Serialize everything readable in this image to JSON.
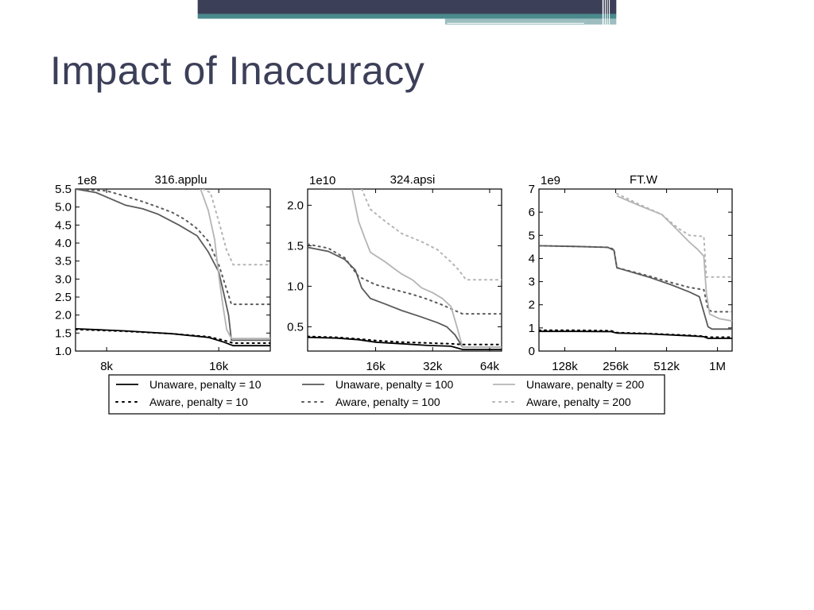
{
  "slide": {
    "title": "Impact of Inaccuracy"
  },
  "theme": {
    "title_color": "#3c3f58",
    "banner_dark": "#3c3f58",
    "banner_teal": "#4a8a8c"
  },
  "chart_data": [
    {
      "type": "line",
      "title": "316.applu",
      "y_scale_label": "1e8",
      "ylim": [
        1.0,
        5.5
      ],
      "y_ticks": [
        1.0,
        1.5,
        2.0,
        2.5,
        3.0,
        3.5,
        4.0,
        4.5,
        5.0,
        5.5
      ],
      "y_tick_labels": [
        "1.0",
        "1.5",
        "2.0",
        "2.5",
        "3.0",
        "3.5",
        "4.0",
        "4.5",
        "5.0",
        "5.5"
      ],
      "x_scale": "log2",
      "xlim": [
        6.6,
        22
      ],
      "x_ticks": [
        8,
        16
      ],
      "x_tick_labels": [
        "8k",
        "16k"
      ],
      "series": [
        {
          "name": "Unaware, penalty = 10",
          "x": [
            6.6,
            9,
            12,
            15,
            16.5,
            17.5,
            22
          ],
          "y": [
            1.62,
            1.56,
            1.48,
            1.38,
            1.25,
            1.15,
            1.15
          ]
        },
        {
          "name": "Aware, penalty = 10",
          "x": [
            6.6,
            9,
            12,
            15,
            16.5,
            17.5,
            22
          ],
          "y": [
            1.6,
            1.55,
            1.48,
            1.4,
            1.3,
            1.22,
            1.22
          ]
        },
        {
          "name": "Unaware, penalty = 100",
          "x": [
            6.6,
            7.5,
            9,
            10,
            11,
            12.5,
            14,
            15,
            16,
            16.5,
            17,
            17.3,
            22
          ],
          "y": [
            5.5,
            5.4,
            5.05,
            4.95,
            4.8,
            4.5,
            4.2,
            3.75,
            3.2,
            2.6,
            2.0,
            1.3,
            1.3
          ]
        },
        {
          "name": "Aware, penalty = 100",
          "x": [
            6.6,
            8,
            9,
            10,
            11,
            12,
            13,
            14,
            15,
            16,
            17.3,
            22
          ],
          "y": [
            5.5,
            5.45,
            5.3,
            5.15,
            5.0,
            4.85,
            4.65,
            4.4,
            4.05,
            3.4,
            2.3,
            2.3
          ]
        },
        {
          "name": "Unaware, penalty = 200",
          "x": [
            14.3,
            15,
            15.6,
            16,
            16.4,
            16.8,
            17.3,
            22
          ],
          "y": [
            5.5,
            4.9,
            4.1,
            3.1,
            2.3,
            1.6,
            1.35,
            1.35
          ]
        },
        {
          "name": "Aware, penalty = 200",
          "x": [
            14.5,
            15.2,
            16,
            16.8,
            17.5,
            22
          ],
          "y": [
            5.5,
            5.4,
            4.6,
            3.8,
            3.4,
            3.4
          ]
        }
      ]
    },
    {
      "type": "line",
      "title": "324.apsi",
      "y_scale_label": "1e10",
      "ylim": [
        0.2,
        2.2
      ],
      "y_ticks": [
        0.5,
        1.0,
        1.5,
        2.0
      ],
      "y_tick_labels": [
        "0.5",
        "1.0",
        "1.5",
        "2.0"
      ],
      "x_scale": "log2",
      "xlim": [
        7,
        74
      ],
      "x_ticks": [
        16,
        32,
        64
      ],
      "x_tick_labels": [
        "16k",
        "32k",
        "64k"
      ],
      "series": [
        {
          "name": "Unaware, penalty = 10",
          "x": [
            7,
            10,
            13,
            16,
            22,
            30,
            40,
            46,
            74
          ],
          "y": [
            0.37,
            0.36,
            0.34,
            0.31,
            0.29,
            0.27,
            0.26,
            0.22,
            0.22
          ]
        },
        {
          "name": "Aware, penalty = 10",
          "x": [
            7,
            10,
            13,
            16,
            22,
            30,
            40,
            46,
            74
          ],
          "y": [
            0.38,
            0.37,
            0.35,
            0.33,
            0.31,
            0.3,
            0.29,
            0.28,
            0.28
          ]
        },
        {
          "name": "Unaware, penalty = 100",
          "x": [
            7,
            9,
            11,
            12.5,
            13.5,
            15,
            18,
            22,
            28,
            34,
            38,
            42,
            46,
            74
          ],
          "y": [
            1.48,
            1.43,
            1.33,
            1.2,
            0.98,
            0.85,
            0.78,
            0.7,
            0.62,
            0.55,
            0.5,
            0.4,
            0.25,
            0.25
          ]
        },
        {
          "name": "Aware, penalty = 100",
          "x": [
            7,
            9,
            11,
            13,
            16,
            20,
            25,
            30,
            36,
            42,
            46,
            74
          ],
          "y": [
            1.52,
            1.47,
            1.35,
            1.12,
            1.02,
            0.96,
            0.9,
            0.84,
            0.77,
            0.7,
            0.66,
            0.66
          ]
        },
        {
          "name": "Unaware, penalty = 200",
          "x": [
            12,
            13,
            14,
            15,
            18,
            20,
            22,
            25,
            28,
            32,
            36,
            40,
            43,
            46,
            74
          ],
          "y": [
            2.2,
            1.8,
            1.6,
            1.42,
            1.3,
            1.22,
            1.15,
            1.08,
            0.98,
            0.92,
            0.85,
            0.75,
            0.5,
            0.25,
            0.25
          ]
        },
        {
          "name": "Aware, penalty = 200",
          "x": [
            13.5,
            15,
            18,
            22,
            28,
            34,
            40,
            44,
            48,
            74
          ],
          "y": [
            2.2,
            1.95,
            1.8,
            1.65,
            1.55,
            1.45,
            1.3,
            1.2,
            1.08,
            1.08
          ]
        }
      ]
    },
    {
      "type": "line",
      "title": "FT.W",
      "y_scale_label": "1e9",
      "ylim": [
        0,
        7
      ],
      "y_ticks": [
        0,
        1,
        2,
        3,
        4,
        5,
        6,
        7
      ],
      "y_tick_labels": [
        "0",
        "1",
        "2",
        "3",
        "4",
        "5",
        "6",
        "7"
      ],
      "x_scale": "log2",
      "xlim": [
        90,
        1250
      ],
      "x_ticks": [
        128,
        256,
        512,
        1024
      ],
      "x_tick_labels": [
        "128k",
        "256k",
        "512k",
        "1M"
      ],
      "series": [
        {
          "name": "Unaware, penalty = 10",
          "x": [
            90,
            150,
            240,
            260,
            400,
            700,
            850,
            900,
            1250
          ],
          "y": [
            0.85,
            0.85,
            0.84,
            0.78,
            0.74,
            0.66,
            0.62,
            0.55,
            0.55
          ]
        },
        {
          "name": "Aware, penalty = 10",
          "x": [
            90,
            150,
            240,
            260,
            400,
            700,
            850,
            900,
            1250
          ],
          "y": [
            0.9,
            0.9,
            0.88,
            0.8,
            0.76,
            0.68,
            0.64,
            0.6,
            0.6
          ]
        },
        {
          "name": "Unaware, penalty = 100",
          "x": [
            90,
            150,
            230,
            250,
            260,
            400,
            550,
            700,
            800,
            900,
            950,
            1250
          ],
          "y": [
            4.55,
            4.52,
            4.48,
            4.35,
            3.6,
            3.2,
            2.85,
            2.55,
            2.35,
            1.05,
            0.95,
            0.95
          ]
        },
        {
          "name": "Aware, penalty = 100",
          "x": [
            90,
            150,
            230,
            250,
            260,
            400,
            550,
            700,
            850,
            900,
            950,
            1250
          ],
          "y": [
            4.55,
            4.52,
            4.48,
            4.4,
            3.6,
            3.25,
            2.95,
            2.75,
            2.65,
            1.8,
            1.7,
            1.7
          ]
        },
        {
          "name": "Unaware, penalty = 200",
          "x": [
            260,
            350,
            480,
            600,
            700,
            780,
            850,
            880,
            920,
            1050,
            1250
          ],
          "y": [
            6.7,
            6.3,
            5.9,
            5.2,
            4.7,
            4.4,
            4.1,
            2.5,
            1.6,
            1.4,
            1.3
          ]
        },
        {
          "name": "Aware, penalty = 200",
          "x": [
            260,
            350,
            480,
            600,
            700,
            850,
            880,
            920,
            1250
          ],
          "y": [
            6.8,
            6.35,
            5.9,
            5.3,
            5.0,
            4.95,
            3.2,
            3.2,
            3.2
          ]
        }
      ]
    }
  ],
  "legend": {
    "items": [
      {
        "label": "Unaware, penalty = 10",
        "series_index": 0
      },
      {
        "label": "Unaware, penalty = 100",
        "series_index": 2
      },
      {
        "label": "Unaware, penalty = 200",
        "series_index": 4
      },
      {
        "label": "Aware, penalty = 10",
        "series_index": 1
      },
      {
        "label": "Aware, penalty = 100",
        "series_index": 3
      },
      {
        "label": "Aware, penalty = 200",
        "series_index": 5
      }
    ]
  },
  "series_styles": [
    {
      "color": "#000000",
      "dashed": false
    },
    {
      "color": "#000000",
      "dashed": true
    },
    {
      "color": "#5a5a5a",
      "dashed": false
    },
    {
      "color": "#5a5a5a",
      "dashed": true
    },
    {
      "color": "#b4b4b4",
      "dashed": false
    },
    {
      "color": "#b4b4b4",
      "dashed": true
    }
  ]
}
